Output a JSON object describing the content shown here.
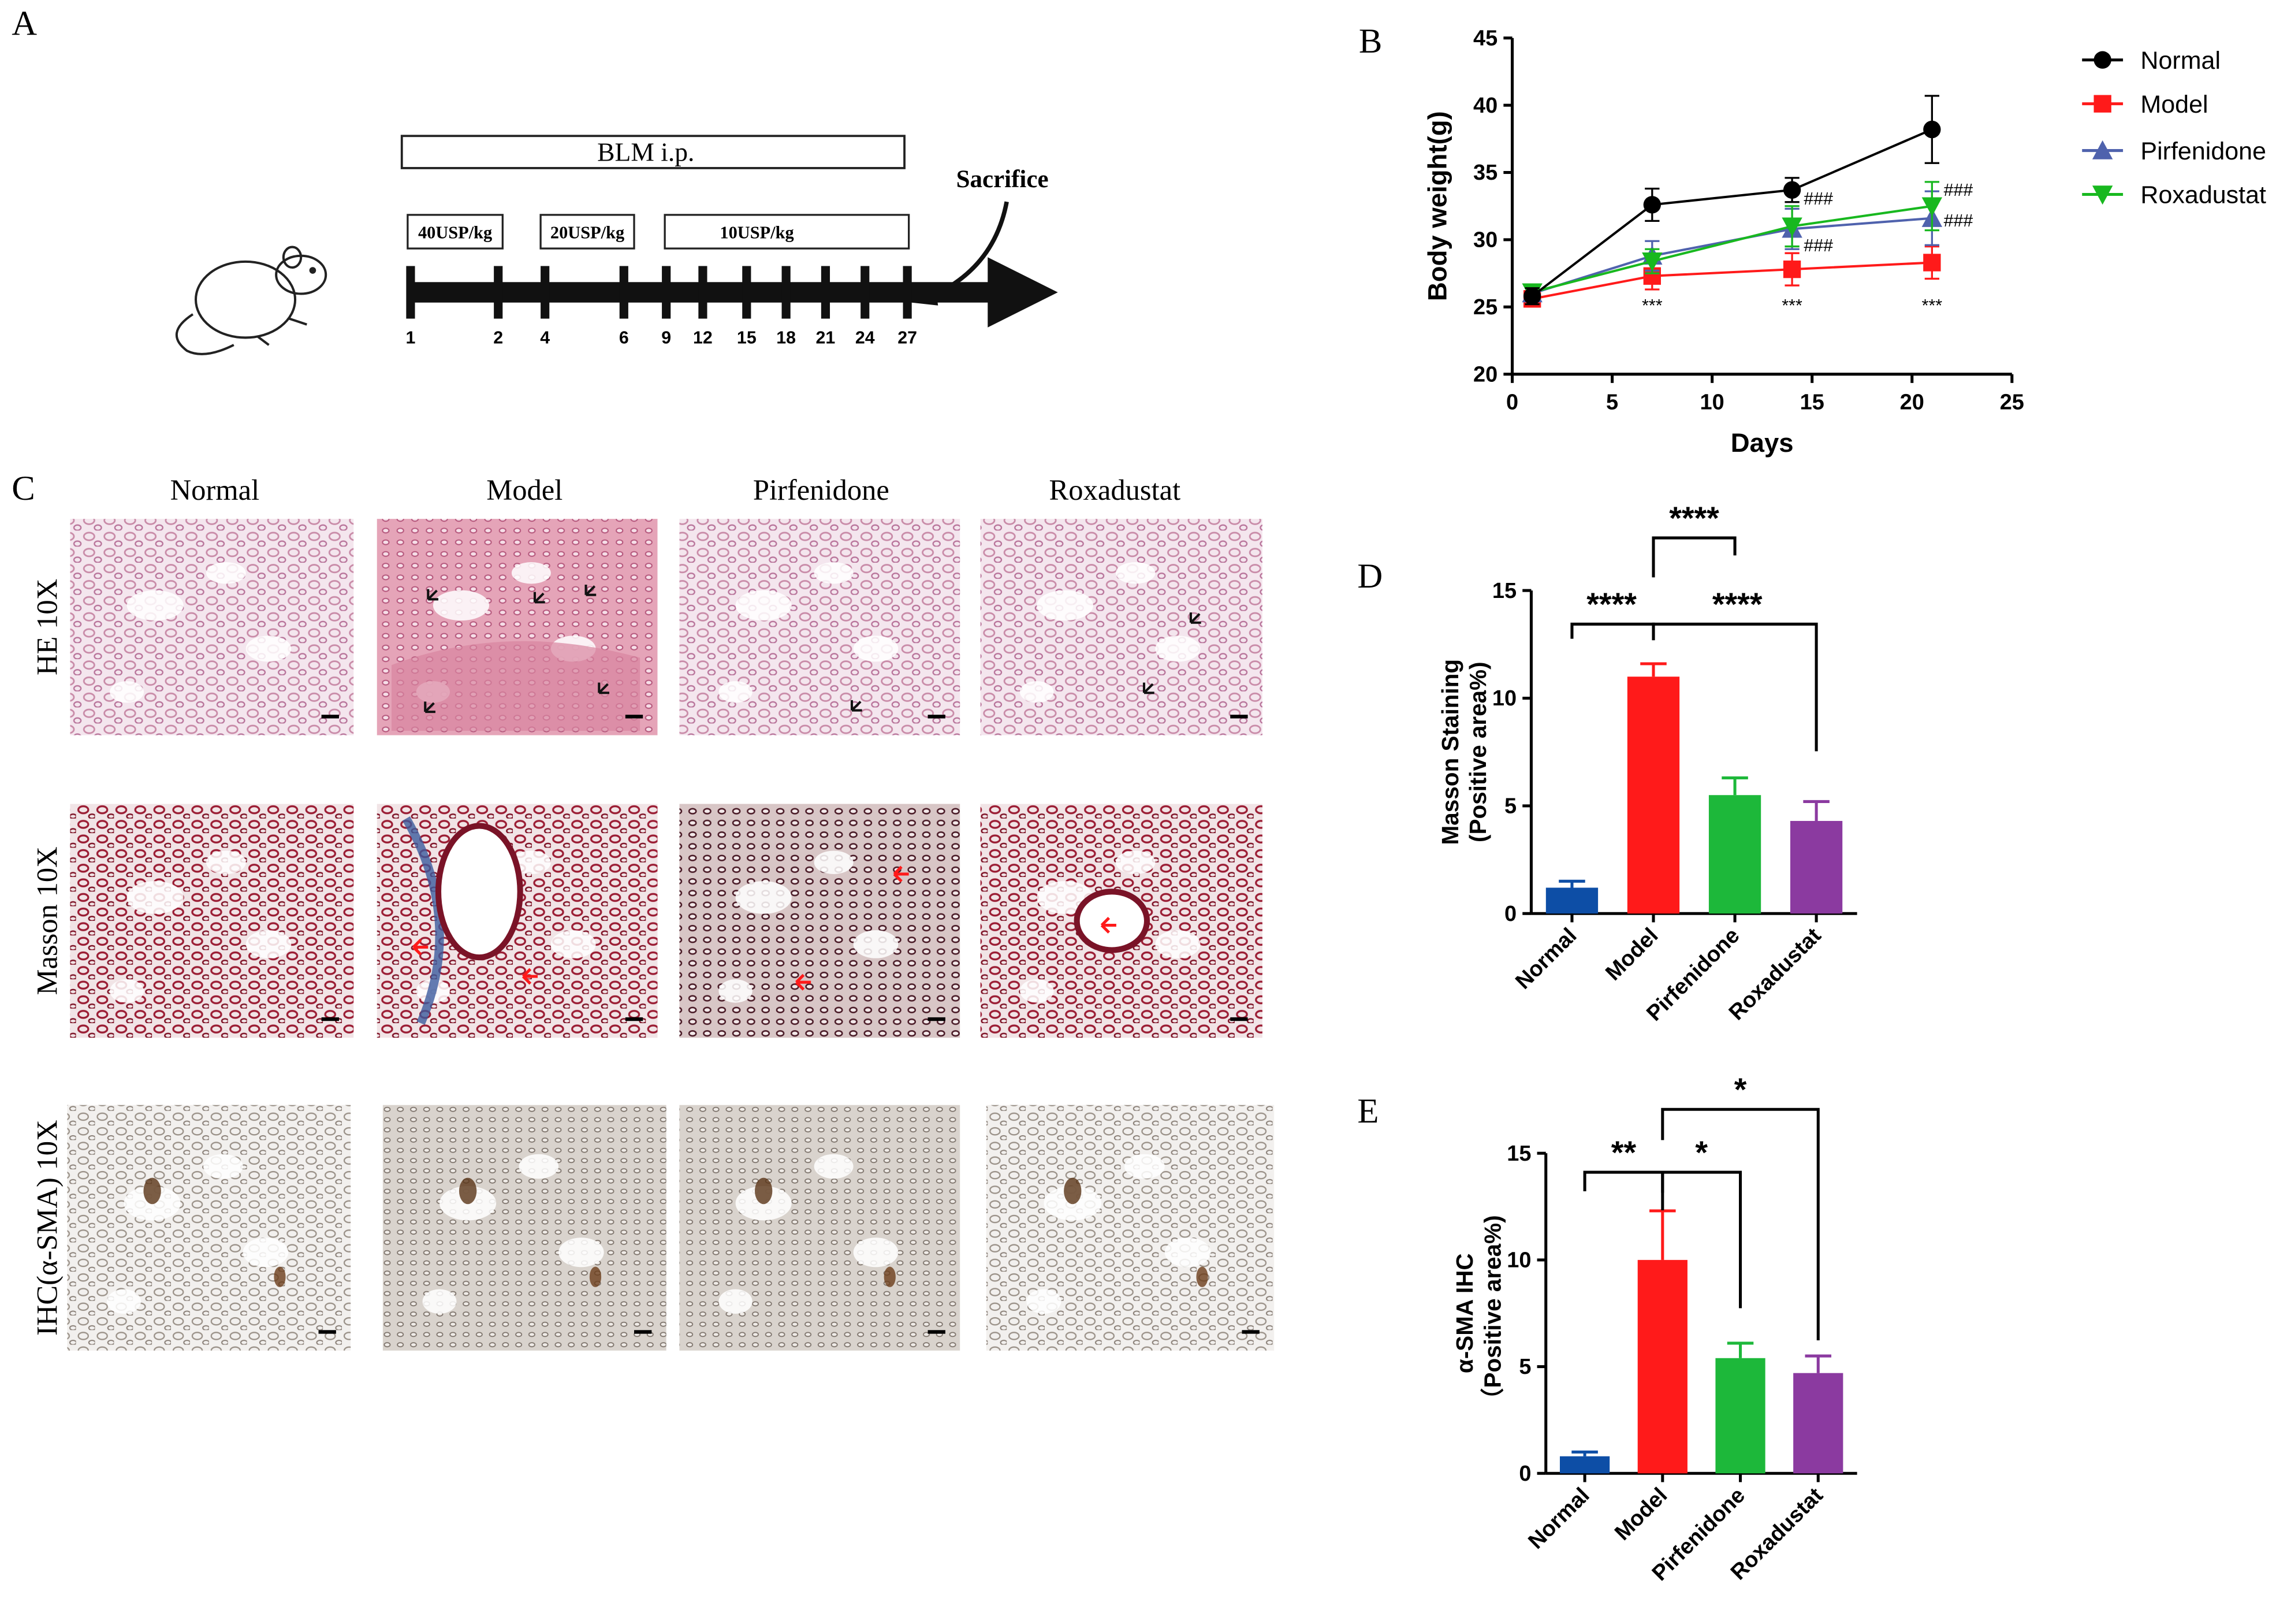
{
  "panels": {
    "A": "A",
    "B": "B",
    "C": "C",
    "D": "D",
    "E": "E"
  },
  "panel_a": {
    "blm_label": "BLM i.p.",
    "doses": [
      "40USP/kg",
      "20USP/kg",
      "10USP/kg"
    ],
    "sacrifice": "Sacrifice",
    "days": [
      "1",
      "2",
      "4",
      "6",
      "9",
      "12",
      "15",
      "18",
      "21",
      "24",
      "27"
    ]
  },
  "panel_c": {
    "columns": [
      "Normal",
      "Model",
      "Pirfenidone",
      "Roxadustat"
    ],
    "rows": [
      "HE  10X",
      "Masson  10X",
      "IHC(α-SMA)  10X"
    ]
  },
  "colors": {
    "Normal": "#000000",
    "Model": "#ff1a1a",
    "Pirfenidone": "#4f62ad",
    "Roxadustat": "#18b81f",
    "bar_normal": "#0d4ea6",
    "bar_model": "#ff1a1a",
    "bar_pirfenidone": "#1db83a",
    "bar_roxadustat": "#8b3aa0"
  },
  "chart_data": [
    {
      "id": "B",
      "type": "line",
      "xlabel": "Days",
      "ylabel": "Body weight(g)",
      "xlim": [
        0,
        25
      ],
      "ylim": [
        20,
        45
      ],
      "xticks": [
        "0",
        "5",
        "10",
        "15",
        "20",
        "25"
      ],
      "yticks": [
        "20",
        "25",
        "30",
        "35",
        "40",
        "45"
      ],
      "legend_position": "right",
      "x": [
        1,
        7,
        14,
        21
      ],
      "series": [
        {
          "name": "Normal",
          "values": [
            25.8,
            32.6,
            33.7,
            38.2
          ],
          "err": [
            0.6,
            1.2,
            0.9,
            2.5
          ],
          "marker": "circle"
        },
        {
          "name": "Model",
          "values": [
            25.6,
            27.3,
            27.8,
            28.3
          ],
          "err": [
            0.5,
            1.0,
            1.2,
            1.2
          ],
          "marker": "square"
        },
        {
          "name": "Pirfenidone",
          "values": [
            26.0,
            28.8,
            30.8,
            31.6
          ],
          "err": [
            0.6,
            1.1,
            1.5,
            2.0
          ],
          "marker": "triangle-up"
        },
        {
          "name": "Roxadustat",
          "values": [
            26.1,
            28.4,
            31.0,
            32.5
          ],
          "err": [
            0.5,
            0.9,
            1.5,
            1.8
          ],
          "marker": "triangle-down"
        }
      ],
      "annotations": {
        "model_sig": "***",
        "treat_sig": "###"
      }
    },
    {
      "id": "D",
      "type": "bar",
      "ylabel": "Masson Staining",
      "ylabel2": "(Positive area%)",
      "categories": [
        "Normal",
        "Model",
        "Pirfenidone",
        "Roxadustat"
      ],
      "values": [
        1.2,
        11.0,
        5.5,
        4.3
      ],
      "err": [
        0.3,
        0.6,
        0.8,
        0.9
      ],
      "ylim": [
        0,
        15
      ],
      "yticks": [
        "0",
        "5",
        "10",
        "15"
      ],
      "brackets": [
        {
          "from": 0,
          "to": 1,
          "label": "****"
        },
        {
          "from": 1,
          "to": 2,
          "label": "****"
        },
        {
          "from": 1,
          "to": 3,
          "label": "****"
        }
      ]
    },
    {
      "id": "E",
      "type": "bar",
      "ylabel": "α-SMA  IHC",
      "ylabel2": "（Positive area%)",
      "categories": [
        "Normal",
        "Model",
        "Pirfenidone",
        "Roxadustat"
      ],
      "values": [
        0.8,
        10.0,
        5.4,
        4.7
      ],
      "err": [
        0.2,
        2.3,
        0.7,
        0.8
      ],
      "ylim": [
        0,
        15
      ],
      "yticks": [
        "0",
        "5",
        "10",
        "15"
      ],
      "brackets": [
        {
          "from": 0,
          "to": 1,
          "label": "**"
        },
        {
          "from": 1,
          "to": 2,
          "label": "*"
        },
        {
          "from": 1,
          "to": 3,
          "label": "*"
        }
      ]
    }
  ]
}
